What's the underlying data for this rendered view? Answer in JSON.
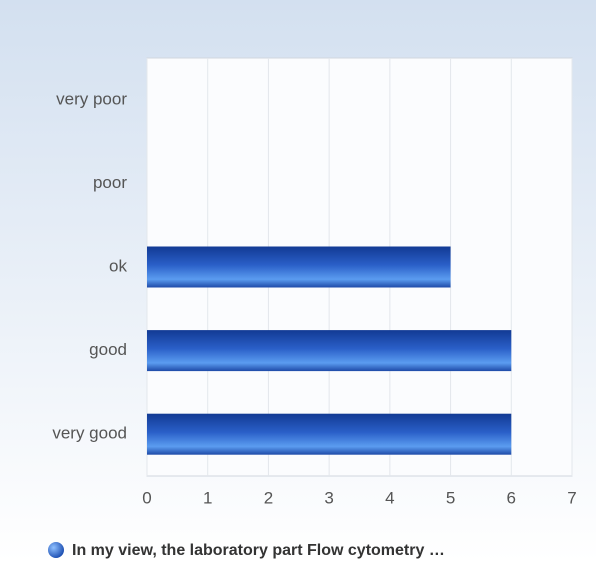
{
  "chart_data": {
    "type": "bar",
    "orientation": "horizontal",
    "categories": [
      "very poor",
      "poor",
      "ok",
      "good",
      "very good"
    ],
    "series": [
      {
        "name": "In my view, the laboratory part Flow cytometry …",
        "color": "#2a5fc8",
        "values": [
          0,
          0,
          5,
          6,
          6
        ]
      }
    ],
    "xlim": [
      0,
      7
    ],
    "xticks": [
      0,
      1,
      2,
      3,
      4,
      5,
      6,
      7
    ],
    "grid": true,
    "legend": "bottom"
  }
}
